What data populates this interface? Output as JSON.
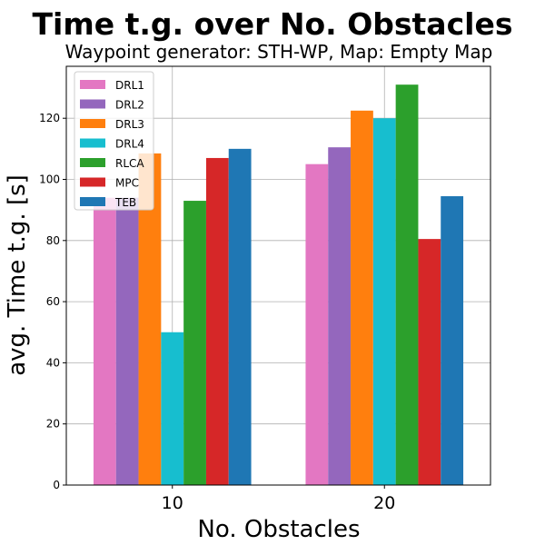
{
  "chart_data": {
    "type": "bar",
    "title": "Time t.g. over No. Obstacles",
    "subtitle": "Waypoint generator: STH-WP, Map: Empty Map",
    "xlabel": "No. Obstacles",
    "ylabel": "avg. Time t.g. [s]",
    "categories": [
      "10",
      "20"
    ],
    "ylim": [
      0,
      137
    ],
    "yticks": [
      0,
      20,
      40,
      60,
      80,
      100,
      120
    ],
    "grid": true,
    "legend_position": "top-left",
    "series": [
      {
        "name": "DRL1",
        "color": "#e377c2",
        "values": [
          94,
          105
        ]
      },
      {
        "name": "DRL2",
        "color": "#9467bd",
        "values": [
          94,
          110.5
        ]
      },
      {
        "name": "DRL3",
        "color": "#ff7f0e",
        "values": [
          108.5,
          122.5
        ]
      },
      {
        "name": "DRL4",
        "color": "#17becf",
        "values": [
          50,
          120
        ]
      },
      {
        "name": "RLCA",
        "color": "#2ca02c",
        "values": [
          93,
          131
        ]
      },
      {
        "name": "MPC",
        "color": "#d62728",
        "values": [
          107,
          80.5
        ]
      },
      {
        "name": "TEB",
        "color": "#1f77b4",
        "values": [
          110,
          94.5
        ]
      }
    ]
  }
}
